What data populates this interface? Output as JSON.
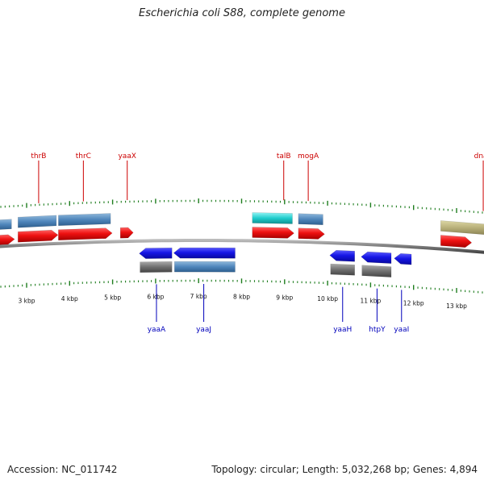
{
  "title": "Escherichia coli S88, complete genome",
  "accession": "Accession: NC_011742",
  "summary": "Topology: circular; Length: 5,032,268 bp; Genes: 4,894",
  "colors": {
    "forward_gene": "#ee1111",
    "reverse_gene": "#1616e6",
    "forward_label": "#cc0000",
    "reverse_label": "#0000bb",
    "tick": "#1e7d1e",
    "backbone": "#777777"
  },
  "scale": {
    "unit": "kbp",
    "major_ticks": [
      {
        "value": 3,
        "label": "3 kbp"
      },
      {
        "value": 4,
        "label": "4 kbp"
      },
      {
        "value": 5,
        "label": "5 kbp"
      },
      {
        "value": 6,
        "label": "6 kbp"
      },
      {
        "value": 7,
        "label": "7 kbp"
      },
      {
        "value": 8,
        "label": "8 kbp"
      },
      {
        "value": 9,
        "label": "9 kbp"
      },
      {
        "value": 10,
        "label": "10 kbp"
      },
      {
        "value": 11,
        "label": "11 kbp"
      },
      {
        "value": 12,
        "label": "12 kbp"
      },
      {
        "value": 13,
        "label": "13 kbp"
      }
    ]
  },
  "genes": [
    {
      "name": "thrB",
      "strand": "+",
      "start": 2.8,
      "end": 3.73,
      "label_at": 3.28,
      "subtrack": "blue"
    },
    {
      "name": "thrC",
      "strand": "+",
      "start": 3.74,
      "end": 4.99,
      "label_at": 4.32,
      "subtrack": "blue"
    },
    {
      "name": "yaaX",
      "strand": "+",
      "start": 5.18,
      "end": 5.48,
      "label_at": 5.34,
      "subtrack": null
    },
    {
      "name": "yaaA",
      "strand": "-",
      "start": 5.62,
      "end": 6.38,
      "label_at": 6.02,
      "subtrack": "gray"
    },
    {
      "name": "yaaJ",
      "strand": "-",
      "start": 6.42,
      "end": 7.85,
      "label_at": 7.12,
      "subtrack": "steel"
    },
    {
      "name": "talB",
      "strand": "+",
      "start": 8.25,
      "end": 9.22,
      "label_at": 8.98,
      "subtrack": "cyan"
    },
    {
      "name": "mogA",
      "strand": "+",
      "start": 9.32,
      "end": 9.93,
      "label_at": 9.55,
      "subtrack": "blue"
    },
    {
      "name": "yaaH",
      "strand": "-",
      "start": 10.05,
      "end": 10.63,
      "label_at": 10.35,
      "subtrack": "gray"
    },
    {
      "name": "htpY",
      "strand": "-",
      "start": 10.78,
      "end": 11.48,
      "label_at": 11.15,
      "subtrack": "gray"
    },
    {
      "name": "yaaI",
      "strand": "-",
      "start": 11.55,
      "end": 11.95,
      "label_at": 11.72,
      "subtrack": null
    },
    {
      "name": "dnaK",
      "strand": "+",
      "start": 12.63,
      "end": 13.35,
      "label_at": 13.62,
      "subtrack": "olive"
    }
  ]
}
